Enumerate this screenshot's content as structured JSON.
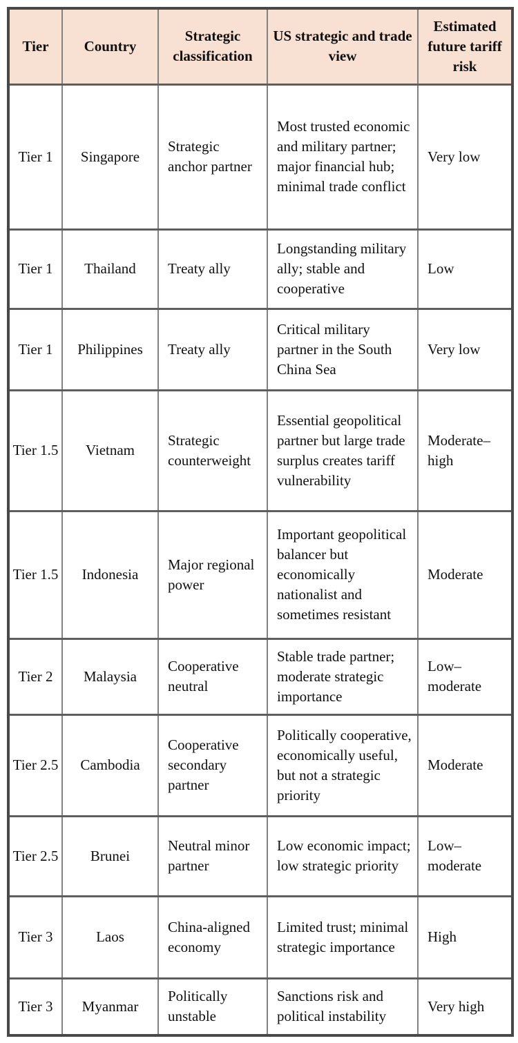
{
  "colors": {
    "header_bg": "#f8e0d3",
    "grid_line": "#5e5e5e",
    "outer_border": "#484848",
    "text": "#101010"
  },
  "table": {
    "columns": [
      {
        "key": "tier",
        "label": "Tier"
      },
      {
        "key": "country",
        "label": "Country"
      },
      {
        "key": "classification",
        "label": "Strategic classification"
      },
      {
        "key": "view",
        "label": "US strategic and trade view"
      },
      {
        "key": "risk",
        "label": "Estimated future tariff risk"
      }
    ],
    "rows": [
      {
        "tier": "Tier 1",
        "country": "Singapore",
        "classification": "Strategic anchor partner",
        "view": "Most trusted economic and military partner; major financial hub; minimal trade conflict",
        "risk": "Very low"
      },
      {
        "tier": "Tier 1",
        "country": "Thailand",
        "classification": "Treaty ally",
        "view": "Longstanding military ally; stable and cooperative",
        "risk": "Low"
      },
      {
        "tier": "Tier 1",
        "country": "Philippines",
        "classification": "Treaty ally",
        "view": "Critical military partner in the South China Sea",
        "risk": "Very low"
      },
      {
        "tier": "Tier 1.5",
        "country": "Vietnam",
        "classification": "Strategic counterweight",
        "view": "Essential geopolit­ical partner but large trade surplus creates tariff vulnerability",
        "risk": "Moderate–high"
      },
      {
        "tier": "Tier 1.5",
        "country": "Indonesia",
        "classification": "Major regional power",
        "view": "Important geopolit­ical balancer but economically nationalist and sometimes resistant",
        "risk": "Moderate"
      },
      {
        "tier": "Tier 2",
        "country": "Malaysia",
        "classification": "Cooperative neutral",
        "view": "Stable trade partner; moderate strategic importance",
        "risk": "Low–moderate"
      },
      {
        "tier": "Tier 2.5",
        "country": "Cambodia",
        "classification": "Cooperative secondary partner",
        "view": "Politically coopera­tive, economically useful, but not a strategic priority",
        "risk": "Moderate"
      },
      {
        "tier": "Tier 2.5",
        "country": "Brunei",
        "classification": "Neutral minor partner",
        "view": "Low economic impact; low strategic priority",
        "risk": "Low–moderate"
      },
      {
        "tier": "Tier 3",
        "country": "Laos",
        "classification": "China-aligned economy",
        "view": "Limited trust; minimal strategic importance",
        "risk": "High"
      },
      {
        "tier": "Tier 3",
        "country": "Myanmar",
        "classification": "Politically unstable",
        "view": "Sanctions risk and political instability",
        "risk": "Very high"
      }
    ]
  }
}
